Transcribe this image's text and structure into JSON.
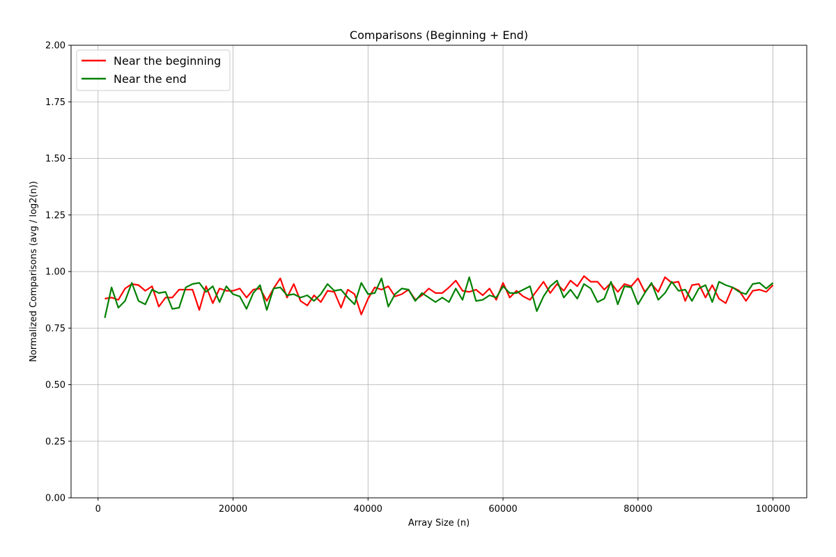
{
  "chart_data": {
    "type": "line",
    "title": "Comparisons (Beginning + End)",
    "xlabel": "Array Size (n)",
    "ylabel": "Normalized Comparisons (avg / log2(n))",
    "xlim": [
      -4000,
      105000
    ],
    "ylim": [
      0,
      2.0
    ],
    "xticks": [
      0,
      20000,
      40000,
      60000,
      80000,
      100000
    ],
    "yticks": [
      0.0,
      0.25,
      0.5,
      0.75,
      1.0,
      1.25,
      1.5,
      1.75,
      2.0
    ],
    "xtick_labels": [
      "0",
      "20000",
      "40000",
      "60000",
      "80000",
      "100000"
    ],
    "ytick_labels": [
      "0.00",
      "0.25",
      "0.50",
      "0.75",
      "1.00",
      "1.25",
      "1.50",
      "1.75",
      "2.00"
    ],
    "grid": true,
    "legend_position": "top-left",
    "x": [
      1000,
      2000,
      3000,
      4000,
      5000,
      6000,
      7000,
      8000,
      9000,
      10000,
      11000,
      12000,
      13000,
      14000,
      15000,
      16000,
      17000,
      18000,
      19000,
      20000,
      21000,
      22000,
      23000,
      24000,
      25000,
      26000,
      27000,
      28000,
      29000,
      30000,
      31000,
      32000,
      33000,
      34000,
      35000,
      36000,
      37000,
      38000,
      39000,
      40000,
      41000,
      42000,
      43000,
      44000,
      45000,
      46000,
      47000,
      48000,
      49000,
      50000,
      51000,
      52000,
      53000,
      54000,
      55000,
      56000,
      57000,
      58000,
      59000,
      60000,
      61000,
      62000,
      63000,
      64000,
      65000,
      66000,
      67000,
      68000,
      69000,
      70000,
      71000,
      72000,
      73000,
      74000,
      75000,
      76000,
      77000,
      78000,
      79000,
      80000,
      81000,
      82000,
      83000,
      84000,
      85000,
      86000,
      87000,
      88000,
      89000,
      90000,
      91000,
      92000,
      93000,
      94000,
      95000,
      96000,
      97000,
      98000,
      99000,
      100000
    ],
    "series": [
      {
        "name": "Near the beginning",
        "color": "#ff0000",
        "values": [
          0.88,
          0.885,
          0.875,
          0.925,
          0.945,
          0.94,
          0.915,
          0.935,
          0.845,
          0.885,
          0.885,
          0.92,
          0.92,
          0.92,
          0.83,
          0.935,
          0.86,
          0.925,
          0.915,
          0.915,
          0.925,
          0.885,
          0.92,
          0.925,
          0.87,
          0.925,
          0.97,
          0.885,
          0.945,
          0.87,
          0.85,
          0.895,
          0.865,
          0.915,
          0.91,
          0.84,
          0.92,
          0.9,
          0.81,
          0.88,
          0.93,
          0.92,
          0.935,
          0.89,
          0.9,
          0.92,
          0.875,
          0.895,
          0.925,
          0.905,
          0.905,
          0.93,
          0.96,
          0.915,
          0.91,
          0.92,
          0.895,
          0.925,
          0.875,
          0.95,
          0.885,
          0.915,
          0.89,
          0.875,
          0.915,
          0.955,
          0.905,
          0.945,
          0.915,
          0.96,
          0.935,
          0.98,
          0.955,
          0.955,
          0.92,
          0.95,
          0.91,
          0.945,
          0.935,
          0.97,
          0.91,
          0.945,
          0.91,
          0.975,
          0.95,
          0.955,
          0.87,
          0.94,
          0.945,
          0.885,
          0.94,
          0.88,
          0.86,
          0.93,
          0.915,
          0.87,
          0.915,
          0.92,
          0.91,
          0.94
        ]
      },
      {
        "name": "Near the end",
        "color": "#008000",
        "values": [
          0.795,
          0.93,
          0.84,
          0.87,
          0.95,
          0.87,
          0.855,
          0.92,
          0.905,
          0.91,
          0.835,
          0.84,
          0.93,
          0.945,
          0.95,
          0.91,
          0.935,
          0.865,
          0.935,
          0.9,
          0.89,
          0.835,
          0.905,
          0.94,
          0.83,
          0.925,
          0.93,
          0.895,
          0.9,
          0.885,
          0.895,
          0.87,
          0.9,
          0.945,
          0.915,
          0.92,
          0.885,
          0.855,
          0.95,
          0.9,
          0.905,
          0.97,
          0.845,
          0.9,
          0.925,
          0.92,
          0.87,
          0.905,
          0.885,
          0.865,
          0.885,
          0.865,
          0.925,
          0.875,
          0.975,
          0.87,
          0.875,
          0.895,
          0.885,
          0.935,
          0.905,
          0.905,
          0.92,
          0.935,
          0.825,
          0.89,
          0.935,
          0.96,
          0.885,
          0.92,
          0.88,
          0.945,
          0.925,
          0.865,
          0.88,
          0.955,
          0.855,
          0.935,
          0.93,
          0.855,
          0.905,
          0.95,
          0.875,
          0.905,
          0.955,
          0.915,
          0.92,
          0.87,
          0.925,
          0.94,
          0.865,
          0.955,
          0.94,
          0.93,
          0.91,
          0.9,
          0.945,
          0.95,
          0.925,
          0.95
        ]
      }
    ]
  }
}
